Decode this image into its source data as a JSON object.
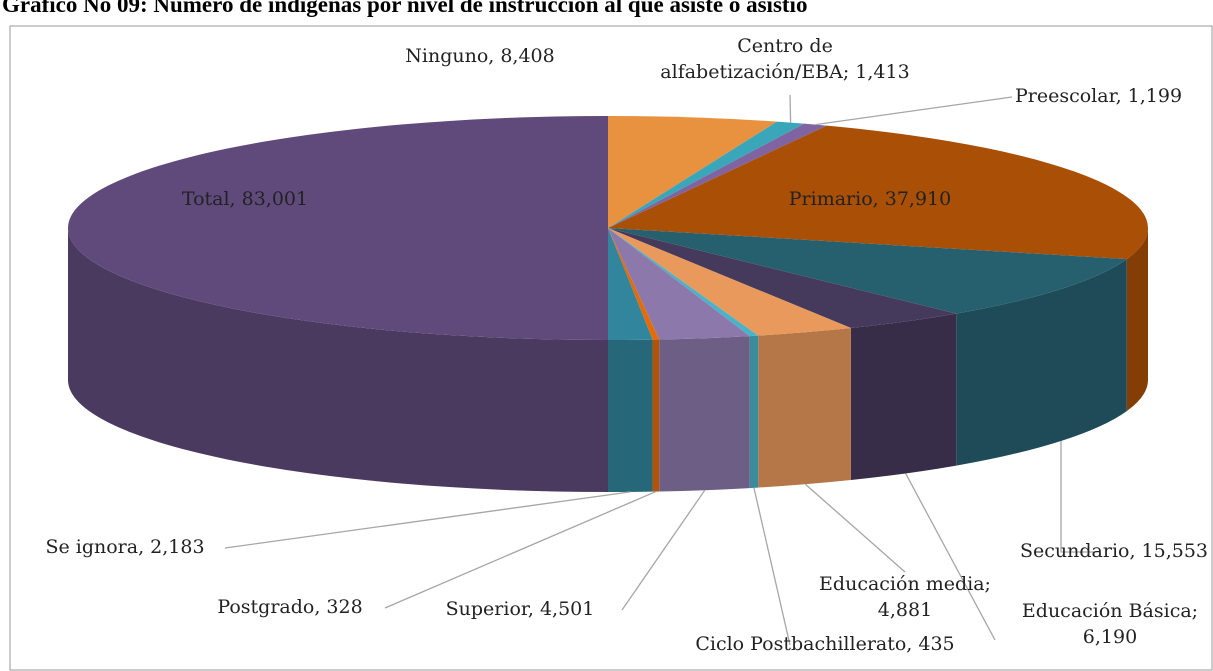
{
  "chart_data": {
    "type": "pie3d",
    "title": "Gráfico No 09: Número de indígenas por nivel de instrucción al que asiste o asistió",
    "labels": [
      [
        "Ninguno,  8,408"
      ],
      [
        "Centro de",
        "alfabetización/EBA;  1,413"
      ],
      [
        "Preescolar,  1,199"
      ],
      [
        "Primario,  37,910"
      ],
      [
        "Secundario,  15,553"
      ],
      [
        "Educación Básica;",
        "6,190"
      ],
      [
        "Educación media;",
        "4,881"
      ],
      [
        "Ciclo Postbachillerato,  435"
      ],
      [
        "Superior,  4,501"
      ],
      [
        "Postgrado,  328"
      ],
      [
        "Se ignora,  2,183"
      ],
      [
        "Total,  83,001"
      ]
    ],
    "values": [
      8408,
      1413,
      1199,
      37910,
      15553,
      6190,
      4881,
      435,
      4501,
      328,
      2183,
      83001
    ],
    "colors": [
      "#e8913f",
      "#3aa6b9",
      "#8064a2",
      "#a94f06",
      "#26606f",
      "#463a5c",
      "#e9995c",
      "#4ab3c8",
      "#8c78aa",
      "#e36c09",
      "#31859c",
      "#604a7b"
    ]
  }
}
